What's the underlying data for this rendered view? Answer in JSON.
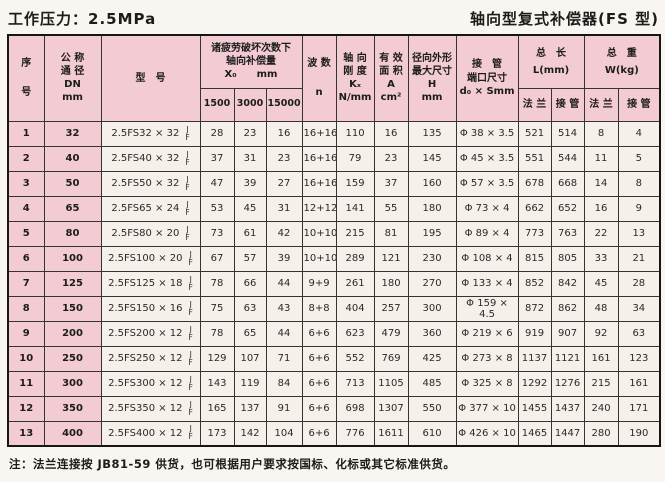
{
  "page": {
    "pressure_title": "工作压力：2.5MPa",
    "product_title": "轴向型复式补偿器(FS 型)",
    "footnote": "注：法兰连接按 JB81-59 供货，也可根据用户要求按国标、化标或其它标准供货。"
  },
  "colors": {
    "header_pink": "#f3cbd2",
    "cell_background": "#f5f0ea",
    "border": "#343434",
    "text": "#1c1c1c"
  },
  "table": {
    "headers": {
      "seq": "序\n号",
      "dn": "公 称\n通 径\nDN\nmm",
      "model": "型　号",
      "x0_group": "诸疲劳破坏次数下\n轴向补偿量\nX₀　　mm",
      "x0_cols": [
        "1500",
        "3000",
        "15000"
      ],
      "waves": "波 数\nn",
      "stiffness": "轴 向\n刚 度\nKₓ\nN/mm",
      "area": "有 效\n面 积\nA\ncm²",
      "radial": "径向外形\n最大尺寸\nH\nmm",
      "port": "接　管\n端口尺寸\nd₀ × Smm",
      "length_group": "总　长\nL(mm)",
      "weight_group": "总　重\nW(kg)",
      "flange": "法 兰",
      "pipe": "接 管"
    },
    "model_suffix": [
      "J",
      "F"
    ],
    "rows": [
      {
        "seq": "1",
        "dn": "32",
        "model": "2.5FS32 × 32",
        "x1500": "28",
        "x3000": "23",
        "x15000": "16",
        "n": "16+16",
        "k": "110",
        "a": "16",
        "h": "135",
        "port": "Φ 38 × 3.5",
        "l_flange": "521",
        "l_pipe": "514",
        "w_flange": "8",
        "w_pipe": "4"
      },
      {
        "seq": "2",
        "dn": "40",
        "model": "2.5FS40 × 32",
        "x1500": "37",
        "x3000": "31",
        "x15000": "23",
        "n": "16+16",
        "k": "79",
        "a": "23",
        "h": "145",
        "port": "Φ 45 × 3.5",
        "l_flange": "551",
        "l_pipe": "544",
        "w_flange": "11",
        "w_pipe": "5"
      },
      {
        "seq": "3",
        "dn": "50",
        "model": "2.5FS50 × 32",
        "x1500": "47",
        "x3000": "39",
        "x15000": "27",
        "n": "16+16",
        "k": "159",
        "a": "37",
        "h": "160",
        "port": "Φ 57 × 3.5",
        "l_flange": "678",
        "l_pipe": "668",
        "w_flange": "14",
        "w_pipe": "8"
      },
      {
        "seq": "4",
        "dn": "65",
        "model": "2.5FS65 × 24",
        "x1500": "53",
        "x3000": "45",
        "x15000": "31",
        "n": "12+12",
        "k": "141",
        "a": "55",
        "h": "180",
        "port": "Φ 73 × 4",
        "l_flange": "662",
        "l_pipe": "652",
        "w_flange": "16",
        "w_pipe": "9"
      },
      {
        "seq": "5",
        "dn": "80",
        "model": "2.5FS80 × 20",
        "x1500": "73",
        "x3000": "61",
        "x15000": "42",
        "n": "10+10",
        "k": "215",
        "a": "81",
        "h": "195",
        "port": "Φ 89 × 4",
        "l_flange": "773",
        "l_pipe": "763",
        "w_flange": "22",
        "w_pipe": "13"
      },
      {
        "seq": "6",
        "dn": "100",
        "model": "2.5FS100 × 20",
        "x1500": "67",
        "x3000": "57",
        "x15000": "39",
        "n": "10+10",
        "k": "289",
        "a": "121",
        "h": "230",
        "port": "Φ 108 × 4",
        "l_flange": "815",
        "l_pipe": "805",
        "w_flange": "33",
        "w_pipe": "21"
      },
      {
        "seq": "7",
        "dn": "125",
        "model": "2.5FS125 × 18",
        "x1500": "78",
        "x3000": "66",
        "x15000": "44",
        "n": "9+9",
        "k": "261",
        "a": "180",
        "h": "270",
        "port": "Φ 133 × 4",
        "l_flange": "852",
        "l_pipe": "842",
        "w_flange": "45",
        "w_pipe": "28"
      },
      {
        "seq": "8",
        "dn": "150",
        "model": "2.5FS150 × 16",
        "x1500": "75",
        "x3000": "63",
        "x15000": "43",
        "n": "8+8",
        "k": "404",
        "a": "257",
        "h": "300",
        "port": "Φ 159 × 4.5",
        "l_flange": "872",
        "l_pipe": "862",
        "w_flange": "48",
        "w_pipe": "34"
      },
      {
        "seq": "9",
        "dn": "200",
        "model": "2.5FS200 × 12",
        "x1500": "78",
        "x3000": "65",
        "x15000": "44",
        "n": "6+6",
        "k": "623",
        "a": "479",
        "h": "360",
        "port": "Φ 219 × 6",
        "l_flange": "919",
        "l_pipe": "907",
        "w_flange": "92",
        "w_pipe": "63"
      },
      {
        "seq": "10",
        "dn": "250",
        "model": "2.5FS250 × 12",
        "x1500": "129",
        "x3000": "107",
        "x15000": "71",
        "n": "6+6",
        "k": "552",
        "a": "769",
        "h": "425",
        "port": "Φ 273 × 8",
        "l_flange": "1137",
        "l_pipe": "1121",
        "w_flange": "161",
        "w_pipe": "123"
      },
      {
        "seq": "11",
        "dn": "300",
        "model": "2.5FS300 × 12",
        "x1500": "143",
        "x3000": "119",
        "x15000": "84",
        "n": "6+6",
        "k": "713",
        "a": "1105",
        "h": "485",
        "port": "Φ 325 × 8",
        "l_flange": "1292",
        "l_pipe": "1276",
        "w_flange": "215",
        "w_pipe": "161"
      },
      {
        "seq": "12",
        "dn": "350",
        "model": "2.5FS350 × 12",
        "x1500": "165",
        "x3000": "137",
        "x15000": "91",
        "n": "6+6",
        "k": "698",
        "a": "1307",
        "h": "550",
        "port": "Φ 377 × 10",
        "l_flange": "1455",
        "l_pipe": "1437",
        "w_flange": "240",
        "w_pipe": "171"
      },
      {
        "seq": "13",
        "dn": "400",
        "model": "2.5FS400 × 12",
        "x1500": "173",
        "x3000": "142",
        "x15000": "104",
        "n": "6+6",
        "k": "776",
        "a": "1611",
        "h": "610",
        "port": "Φ 426 × 10",
        "l_flange": "1465",
        "l_pipe": "1447",
        "w_flange": "280",
        "w_pipe": "190"
      }
    ]
  }
}
